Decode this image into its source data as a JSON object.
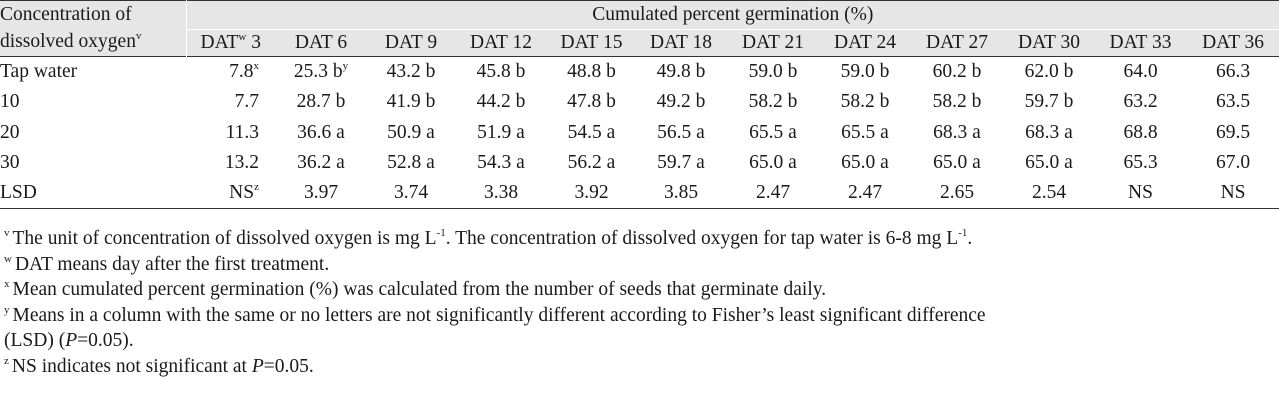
{
  "table": {
    "conc_header_line1": "Concentration of",
    "conc_header_line2": "dissolved oxygen",
    "conc_header_sup": "v",
    "cum_header": "Cumulated percent germination (%)",
    "dat_headers": [
      {
        "label": "DAT",
        "sup": "w",
        "suffix": " 3"
      },
      {
        "label": "DAT 6"
      },
      {
        "label": "DAT 9"
      },
      {
        "label": "DAT 12"
      },
      {
        "label": "DAT 15"
      },
      {
        "label": "DAT 18"
      },
      {
        "label": "DAT 21"
      },
      {
        "label": "DAT 24"
      },
      {
        "label": "DAT 27"
      },
      {
        "label": "DAT 30"
      },
      {
        "label": "DAT 33"
      },
      {
        "label": "DAT 36"
      }
    ],
    "rows": [
      {
        "label": "Tap water",
        "cells": [
          {
            "v": "7.8",
            "sup": "x"
          },
          {
            "v": "25.3 b",
            "sup": "y"
          },
          {
            "v": "43.2 b"
          },
          {
            "v": "45.8 b"
          },
          {
            "v": "48.8 b"
          },
          {
            "v": "49.8 b"
          },
          {
            "v": "59.0 b"
          },
          {
            "v": "59.0 b"
          },
          {
            "v": "60.2 b"
          },
          {
            "v": "62.0 b"
          },
          {
            "v": "64.0"
          },
          {
            "v": "66.3"
          }
        ]
      },
      {
        "label": "10",
        "cells": [
          {
            "v": "7.7"
          },
          {
            "v": "28.7 b"
          },
          {
            "v": "41.9 b"
          },
          {
            "v": "44.2 b"
          },
          {
            "v": "47.8 b"
          },
          {
            "v": "49.2 b"
          },
          {
            "v": "58.2 b"
          },
          {
            "v": "58.2 b"
          },
          {
            "v": "58.2 b"
          },
          {
            "v": "59.7 b"
          },
          {
            "v": "63.2"
          },
          {
            "v": "63.5"
          }
        ]
      },
      {
        "label": "20",
        "cells": [
          {
            "v": "11.3"
          },
          {
            "v": "36.6 a"
          },
          {
            "v": "50.9 a"
          },
          {
            "v": "51.9 a"
          },
          {
            "v": "54.5 a"
          },
          {
            "v": "56.5 a"
          },
          {
            "v": "65.5 a"
          },
          {
            "v": "65.5 a"
          },
          {
            "v": "68.3 a"
          },
          {
            "v": "68.3 a"
          },
          {
            "v": "68.8"
          },
          {
            "v": "69.5"
          }
        ]
      },
      {
        "label": "30",
        "cells": [
          {
            "v": "13.2"
          },
          {
            "v": "36.2 a"
          },
          {
            "v": "52.8 a"
          },
          {
            "v": "54.3 a"
          },
          {
            "v": "56.2 a"
          },
          {
            "v": "59.7 a"
          },
          {
            "v": "65.0 a"
          },
          {
            "v": "65.0 a"
          },
          {
            "v": "65.0 a"
          },
          {
            "v": "65.0 a"
          },
          {
            "v": "65.3"
          },
          {
            "v": "67.0"
          }
        ]
      },
      {
        "label": "LSD",
        "cells": [
          {
            "v": "NS",
            "sup": "z"
          },
          {
            "v": "3.97"
          },
          {
            "v": "3.74"
          },
          {
            "v": "3.38"
          },
          {
            "v": "3.92"
          },
          {
            "v": "3.85"
          },
          {
            "v": "2.47"
          },
          {
            "v": "2.47"
          },
          {
            "v": "2.65"
          },
          {
            "v": "2.54"
          },
          {
            "v": "NS"
          },
          {
            "v": "NS"
          }
        ]
      }
    ]
  },
  "footnotes": {
    "v": {
      "mark": "v",
      "text_a": "The unit of concentration of dissolved oxygen is mg L",
      "sup_a": "-1",
      "text_b": ". The concentration of dissolved oxygen for tap water is 6-8 mg L",
      "sup_b": "-1",
      "text_c": "."
    },
    "w": {
      "mark": "w",
      "text": "DAT means day after the first treatment."
    },
    "x": {
      "mark": "x",
      "text": "Mean cumulated percent germination (%) was calculated from the number of seeds that germinate daily."
    },
    "y": {
      "mark": "y",
      "text_a": "Means in a column with the same or no letters are not significantly different according to Fisher’s least significant difference",
      "text_b": "(LSD) (",
      "italic": "P",
      "text_c": "=0.05)."
    },
    "z": {
      "mark": "z",
      "text_a": "NS indicates not significant at ",
      "italic": "P",
      "text_c": "=0.05."
    }
  }
}
